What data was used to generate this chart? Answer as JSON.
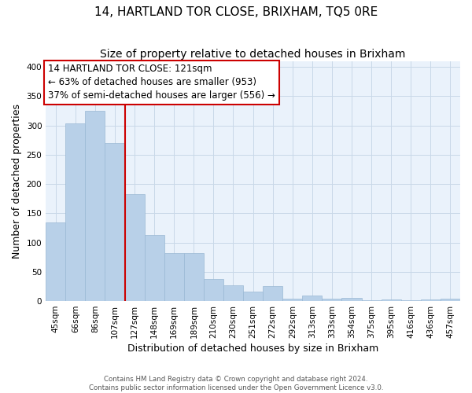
{
  "title": "14, HARTLAND TOR CLOSE, BRIXHAM, TQ5 0RE",
  "subtitle": "Size of property relative to detached houses in Brixham",
  "xlabel": "Distribution of detached houses by size in Brixham",
  "ylabel": "Number of detached properties",
  "categories": [
    "45sqm",
    "66sqm",
    "86sqm",
    "107sqm",
    "127sqm",
    "148sqm",
    "169sqm",
    "189sqm",
    "210sqm",
    "230sqm",
    "251sqm",
    "272sqm",
    "292sqm",
    "313sqm",
    "333sqm",
    "354sqm",
    "375sqm",
    "395sqm",
    "416sqm",
    "436sqm",
    "457sqm"
  ],
  "values": [
    135,
    303,
    325,
    270,
    183,
    113,
    82,
    82,
    38,
    27,
    16,
    26,
    4,
    10,
    4,
    5,
    1,
    3,
    2,
    3,
    4
  ],
  "bar_color": "#b8d0e8",
  "bar_edgecolor": "#9ab8d4",
  "vline_x_index": 3.5,
  "vline_color": "#cc0000",
  "annotation_line1": "14 HARTLAND TOR CLOSE: 121sqm",
  "annotation_line2": "← 63% of detached houses are smaller (953)",
  "annotation_line3": "37% of semi-detached houses are larger (556) →",
  "annotation_box_edgecolor": "#cc0000",
  "ylim": [
    0,
    410
  ],
  "yticks": [
    0,
    50,
    100,
    150,
    200,
    250,
    300,
    350,
    400
  ],
  "grid_color": "#c8d8e8",
  "bg_color": "#eaf2fb",
  "footer1": "Contains HM Land Registry data © Crown copyright and database right 2024.",
  "footer2": "Contains public sector information licensed under the Open Government Licence v3.0.",
  "title_fontsize": 11,
  "subtitle_fontsize": 10,
  "xlabel_fontsize": 9,
  "ylabel_fontsize": 9,
  "tick_fontsize": 7.5,
  "annotation_fontsize": 8.5
}
